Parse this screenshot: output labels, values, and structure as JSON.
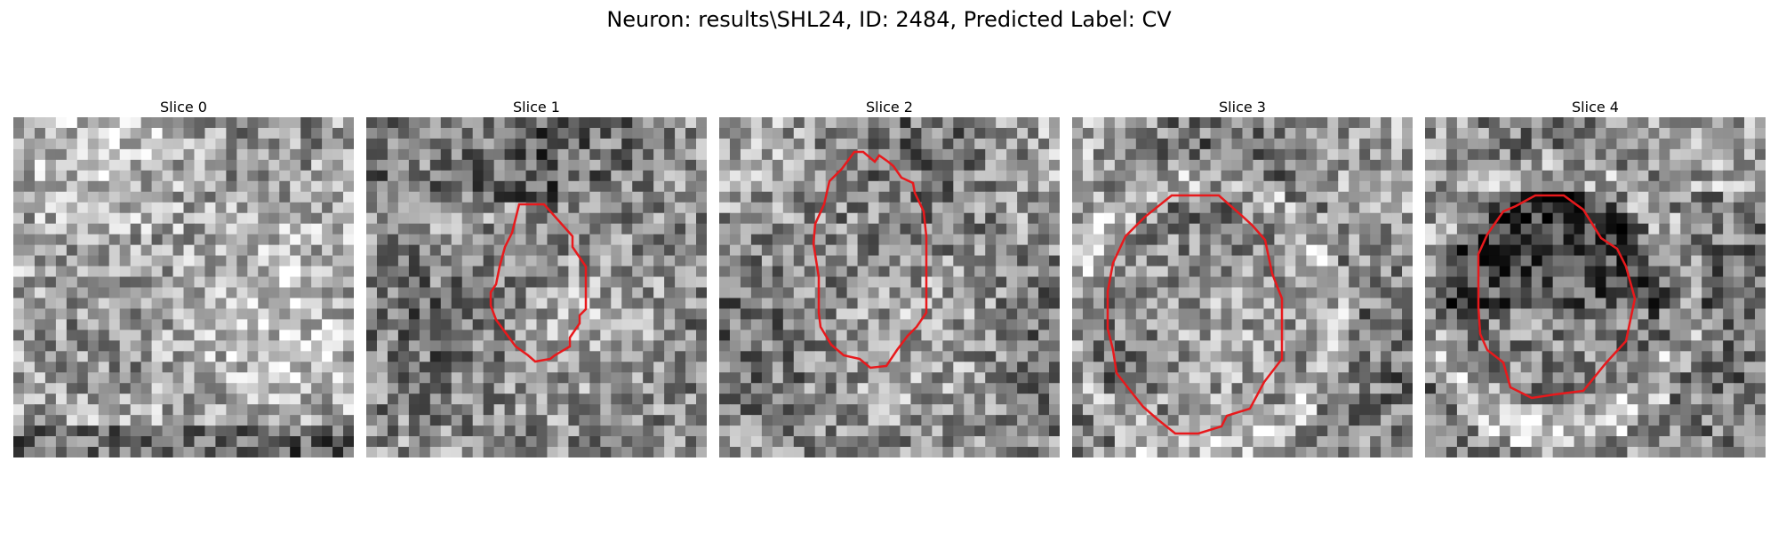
{
  "figure": {
    "title": "Neuron: results\\SHL24, ID: 2484, Predicted Label: CV"
  },
  "panels": [
    {
      "title": "Slice 0",
      "has_outline": false,
      "image": "grayscale-noise-tile"
    },
    {
      "title": "Slice 1",
      "has_outline": true,
      "image": "grayscale-noise-tile"
    },
    {
      "title": "Slice 2",
      "has_outline": true,
      "image": "grayscale-noise-tile"
    },
    {
      "title": "Slice 3",
      "has_outline": true,
      "image": "grayscale-noise-tile"
    },
    {
      "title": "Slice 4",
      "has_outline": true,
      "image": "grayscale-noise-tile"
    }
  ],
  "colors": {
    "outline": "#e8191c",
    "background": "#ffffff"
  }
}
